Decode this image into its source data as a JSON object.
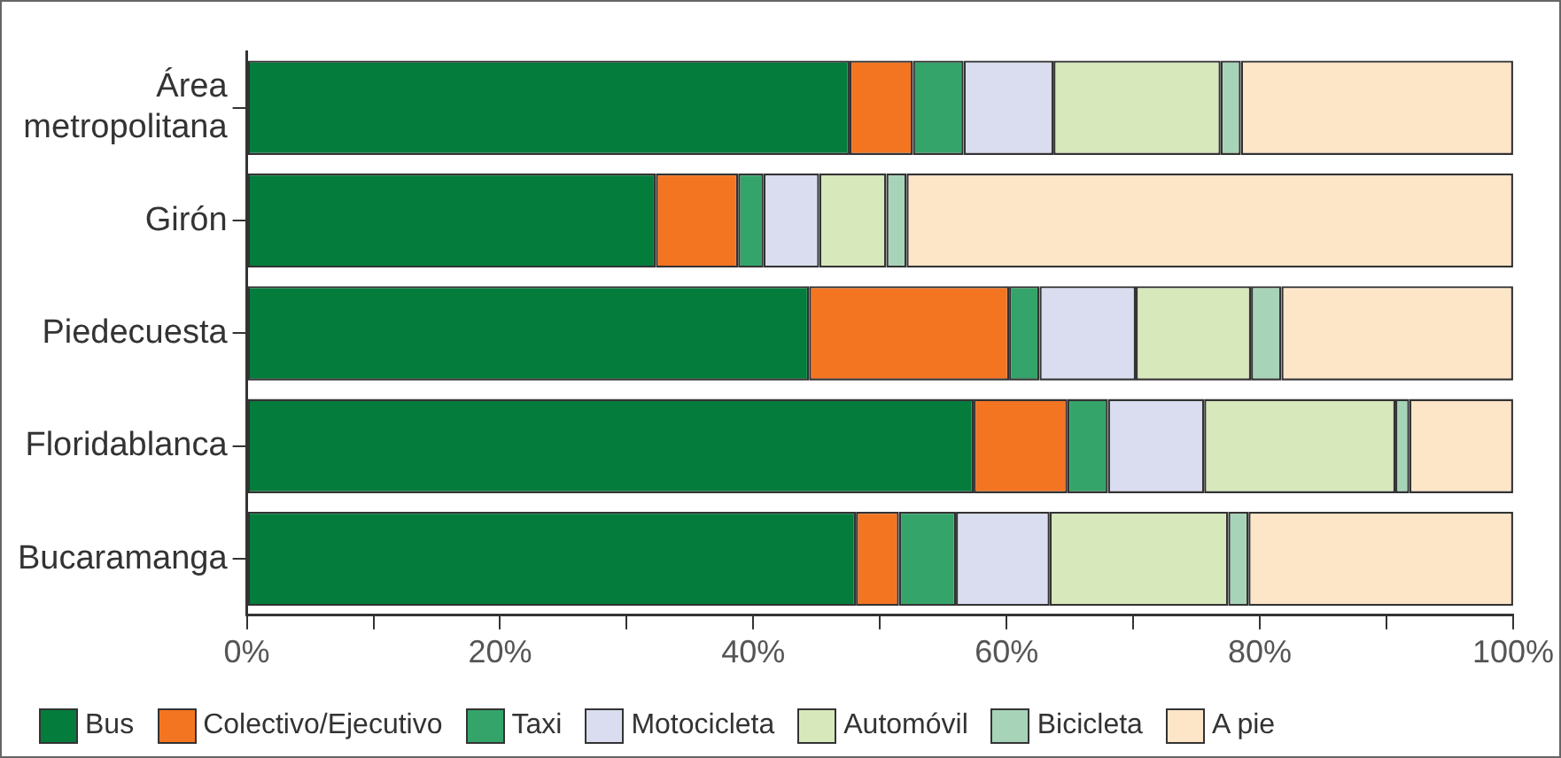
{
  "chart_data": {
    "type": "bar",
    "orientation": "horizontal",
    "stacked": true,
    "categories": [
      "Área metropolitana",
      "Girón",
      "Piedecuesta",
      "Floridablanca",
      "Bucaramanga"
    ],
    "series": [
      {
        "name": "Bus",
        "color": "#037c3c",
        "values": [
          47.6,
          32.3,
          44.4,
          57.4,
          48.1
        ]
      },
      {
        "name": "Colectivo/Ejecutivo",
        "color": "#f47521",
        "values": [
          5.0,
          6.5,
          15.8,
          7.4,
          3.4
        ]
      },
      {
        "name": "Taxi",
        "color": "#35a46a",
        "values": [
          4.0,
          2.0,
          2.4,
          3.2,
          4.5
        ]
      },
      {
        "name": "Motocicleta",
        "color": "#d9ddef",
        "values": [
          7.1,
          4.4,
          7.6,
          7.6,
          7.4
        ]
      },
      {
        "name": "Automóvil",
        "color": "#d7e8bb",
        "values": [
          13.2,
          5.3,
          9.1,
          15.1,
          14.1
        ]
      },
      {
        "name": "Bicicleta",
        "color": "#a7d4b8",
        "values": [
          1.6,
          1.6,
          2.4,
          1.1,
          1.6
        ]
      },
      {
        "name": "A pie",
        "color": "#fde5c8",
        "values": [
          21.5,
          47.9,
          18.3,
          8.2,
          20.9
        ]
      }
    ],
    "xlim": [
      0,
      100
    ],
    "xticks": [
      {
        "value": 0,
        "label": "0%"
      },
      {
        "value": 10,
        "label": null
      },
      {
        "value": 20,
        "label": "20%"
      },
      {
        "value": 30,
        "label": null
      },
      {
        "value": 40,
        "label": "40%"
      },
      {
        "value": 50,
        "label": null
      },
      {
        "value": 60,
        "label": "60%"
      },
      {
        "value": 70,
        "label": null
      },
      {
        "value": 80,
        "label": "80%"
      },
      {
        "value": 90,
        "label": null
      },
      {
        "value": 100,
        "label": "100%"
      }
    ],
    "grid": false,
    "legend": "bottom"
  }
}
